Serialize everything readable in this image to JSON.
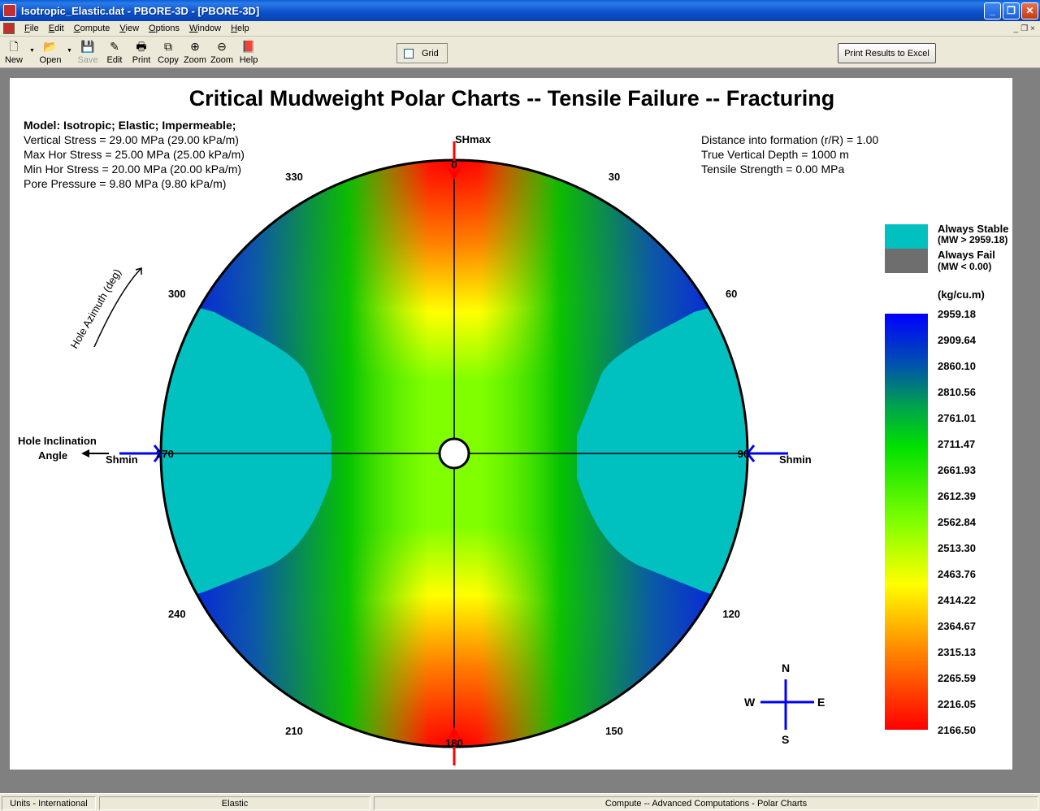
{
  "window": {
    "title": "Isotropic_Elastic.dat - PBORE-3D  - [PBORE-3D]",
    "minimize": "_",
    "maximize": "❐",
    "close": "✕"
  },
  "menu": [
    "File",
    "Edit",
    "Compute",
    "View",
    "Options",
    "Window",
    "Help"
  ],
  "mdi_controls": [
    "_",
    "❐",
    "×"
  ],
  "toolbar": {
    "new": "New",
    "open": "Open",
    "save": "Save",
    "edit": "Edit",
    "print": "Print",
    "copy": "Copy",
    "zoom_in": "Zoom",
    "zoom_out": "Zoom",
    "help": "Help",
    "grid_label": "Grid",
    "excel_button": "Print Results to Excel"
  },
  "chart": {
    "title": "Critical Mudweight Polar Charts -- Tensile Failure -- Fracturing",
    "model": "Model: Isotropic; Elastic; Impermeable;",
    "params_left": [
      "Vertical Stress = 29.00 MPa (29.00 kPa/m)",
      "Max Hor Stress = 25.00 MPa (25.00 kPa/m)",
      "Min Hor Stress = 20.00 MPa (20.00 kPa/m)",
      "Pore Pressure = 9.80 MPa (9.80 kPa/m)"
    ],
    "params_right": [
      "Distance into formation (r/R) =  1.00",
      "True Vertical Depth = 1000 m",
      "Tensile Strength = 0.00 MPa"
    ],
    "shmax_label": "SHmax",
    "shmin_left": "Shmin",
    "shmin_right": "Shmin",
    "hole_azimuth_label": "Hole Azimuth (deg)",
    "hole_inclination_1": "Hole Inclination",
    "hole_inclination_2": "Angle",
    "compass": {
      "n": "N",
      "s": "S",
      "e": "E",
      "w": "W"
    },
    "legend": {
      "always_stable": "Always Stable",
      "always_stable_sub": "(MW > 2959.18)",
      "always_fail": "Always Fail",
      "always_fail_sub": "(MW < 0.00)",
      "units": "(kg/cu.m)",
      "stable_color": "#00c0c0",
      "fail_color": "#6e6e6e"
    }
  },
  "chart_data": {
    "type": "heatmap",
    "title": "Critical Mudweight Polar Charts -- Tensile Failure -- Fracturing",
    "azimuth_labels": [
      "0",
      "30",
      "60",
      "90",
      "120",
      "150",
      "180",
      "210",
      "240",
      "270",
      "300",
      "330"
    ],
    "colorbar_ticks": [
      "2959.18",
      "2909.64",
      "2860.10",
      "2810.56",
      "2761.01",
      "2711.47",
      "2661.93",
      "2612.39",
      "2562.84",
      "2513.30",
      "2463.76",
      "2414.22",
      "2364.67",
      "2315.13",
      "2265.59",
      "2216.05",
      "2166.50"
    ],
    "colorbar_range": [
      2166.5,
      2959.18
    ],
    "colorbar_units": "(kg/cu.m)",
    "colors": [
      "#0000ff",
      "#0050b0",
      "#00c000",
      "#80ff00",
      "#ffff00",
      "#ff8000",
      "#ff0000"
    ]
  },
  "status": [
    "Units - International",
    "Elastic",
    "Compute -- Advanced Computations - Polar Charts"
  ]
}
